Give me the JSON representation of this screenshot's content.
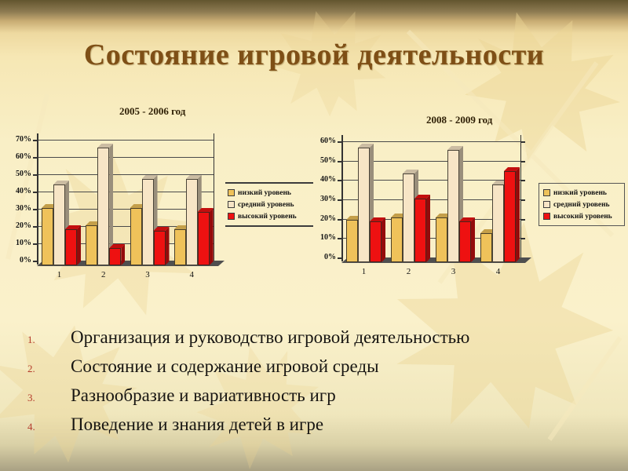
{
  "title": "Состояние игровой деятельности",
  "list": {
    "items": [
      {
        "num": "1.",
        "text": "Организация и руководство игровой деятельностью"
      },
      {
        "num": "2.",
        "text": "Состояние и содержание игровой среды"
      },
      {
        "num": "3.",
        "text": "Разнообразие и вариативность игр"
      },
      {
        "num": "4.",
        "text": "Поведение и знания детей в игре"
      }
    ]
  },
  "chart_data": [
    {
      "type": "bar",
      "title": "2005 - 2006 год",
      "categories": [
        "1",
        "2",
        "3",
        "4"
      ],
      "series": [
        {
          "name": "низкий уровень",
          "color": "#EFC25A",
          "values": [
            33,
            23,
            33,
            21
          ]
        },
        {
          "name": "средний уровень",
          "color": "#F7E5C6",
          "values": [
            47,
            68,
            50,
            50
          ]
        },
        {
          "name": "высокий уровень",
          "color": "#EE1111",
          "values": [
            21,
            10,
            20,
            31
          ]
        }
      ],
      "xlabel": "",
      "ylabel": "",
      "ylim": [
        0,
        70
      ],
      "ytick_step": 10,
      "ytick_suffix": "%",
      "grid": true,
      "legend_position": "right",
      "legend_style": "lines"
    },
    {
      "type": "bar",
      "title": "2008 - 2009  год",
      "categories": [
        "1",
        "2",
        "3",
        "4"
      ],
      "series": [
        {
          "name": "низкий уровень",
          "color": "#EFC25A",
          "values": [
            22,
            23,
            23,
            15
          ]
        },
        {
          "name": "средний уровень",
          "color": "#F7E5C6",
          "values": [
            59,
            46,
            58,
            40
          ]
        },
        {
          "name": "высокий уровень",
          "color": "#EE1111",
          "values": [
            21,
            33,
            21,
            47
          ]
        }
      ],
      "xlabel": "",
      "ylabel": "",
      "ylim": [
        0,
        60
      ],
      "ytick_step": 10,
      "ytick_suffix": "%",
      "grid": true,
      "legend_position": "right",
      "legend_style": "box"
    }
  ],
  "colors": {
    "title_text": "#7e4f16",
    "list_number": "#b43a2b",
    "gridline": "#4a4a4a",
    "floor": "#4f4f4f",
    "background_top": "#63552f",
    "background_mid": "#f9efc6",
    "background_bottom": "#a9a183",
    "leaf_decoration": "#e8cd8e"
  }
}
